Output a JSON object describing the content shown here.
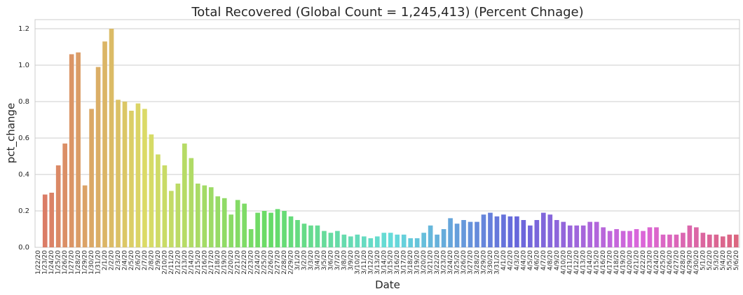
{
  "chart_data": {
    "type": "bar",
    "title": "Total Recovered (Global Count = 1,245,413) (Percent Chnage)",
    "x_label": "Date",
    "y_label": "pct_change",
    "categories": [
      "1/22/20",
      "1/23/20",
      "1/24/20",
      "1/25/20",
      "1/26/20",
      "1/27/20",
      "1/28/20",
      "1/29/20",
      "1/30/20",
      "1/31/20",
      "2/1/20",
      "2/2/20",
      "2/3/20",
      "2/4/20",
      "2/5/20",
      "2/6/20",
      "2/7/20",
      "2/8/20",
      "2/9/20",
      "2/10/20",
      "2/11/20",
      "2/12/20",
      "2/13/20",
      "2/14/20",
      "2/15/20",
      "2/16/20",
      "2/17/20",
      "2/18/20",
      "2/19/20",
      "2/20/20",
      "2/21/20",
      "2/22/20",
      "2/23/20",
      "2/24/20",
      "2/25/20",
      "2/26/20",
      "2/27/20",
      "2/28/20",
      "2/29/20",
      "3/1/20",
      "3/2/20",
      "3/3/20",
      "3/4/20",
      "3/5/20",
      "3/6/20",
      "3/7/20",
      "3/8/20",
      "3/9/20",
      "3/10/20",
      "3/11/20",
      "3/12/20",
      "3/13/20",
      "3/14/20",
      "3/15/20",
      "3/16/20",
      "3/17/20",
      "3/18/20",
      "3/19/20",
      "3/20/20",
      "3/21/20",
      "3/22/20",
      "3/23/20",
      "3/24/20",
      "3/25/20",
      "3/26/20",
      "3/27/20",
      "3/28/20",
      "3/29/20",
      "3/30/20",
      "3/31/20",
      "4/1/20",
      "4/2/20",
      "4/3/20",
      "4/4/20",
      "4/5/20",
      "4/6/20",
      "4/7/20",
      "4/8/20",
      "4/9/20",
      "4/10/20",
      "4/11/20",
      "4/12/20",
      "4/13/20",
      "4/14/20",
      "4/15/20",
      "4/16/20",
      "4/17/20",
      "4/18/20",
      "4/19/20",
      "4/20/20",
      "4/21/20",
      "4/22/20",
      "4/23/20",
      "4/24/20",
      "4/25/20",
      "4/26/20",
      "4/27/20",
      "4/28/20",
      "4/29/20",
      "4/30/20",
      "5/1/20",
      "5/2/20",
      "5/3/20",
      "5/4/20",
      "5/5/20",
      "5/6/20"
    ],
    "values": [
      null,
      0.29,
      0.3,
      0.45,
      0.57,
      1.06,
      1.07,
      0.34,
      0.76,
      0.99,
      1.13,
      1.2,
      0.81,
      0.8,
      0.75,
      0.79,
      0.76,
      0.62,
      0.51,
      0.45,
      0.31,
      0.35,
      0.57,
      0.49,
      0.35,
      0.34,
      0.33,
      0.28,
      0.27,
      0.18,
      0.26,
      0.24,
      0.1,
      0.19,
      0.2,
      0.19,
      0.21,
      0.2,
      0.17,
      0.15,
      0.13,
      0.12,
      0.12,
      0.09,
      0.08,
      0.09,
      0.07,
      0.06,
      0.07,
      0.06,
      0.05,
      0.06,
      0.08,
      0.08,
      0.07,
      0.07,
      0.05,
      0.05,
      0.08,
      0.12,
      0.07,
      0.1,
      0.16,
      0.13,
      0.15,
      0.14,
      0.14,
      0.18,
      0.19,
      0.17,
      0.18,
      0.17,
      0.17,
      0.15,
      0.12,
      0.15,
      0.19,
      0.18,
      0.15,
      0.14,
      0.12,
      0.12,
      0.12,
      0.14,
      0.14,
      0.11,
      0.09,
      0.1,
      0.09,
      0.09,
      0.1,
      0.09,
      0.11,
      0.11,
      0.07,
      0.07,
      0.07,
      0.08,
      0.12,
      0.11,
      0.08,
      0.07,
      0.07,
      0.06,
      0.07,
      0.07
    ],
    "palette": "husl",
    "ylim": [
      0,
      1.25
    ],
    "yticks": [
      {
        "value": 0,
        "label": "0.0"
      },
      0.2,
      0.4,
      0.6,
      0.8,
      {
        "value": 1,
        "label": "1.0"
      },
      1.2
    ],
    "grid": true
  }
}
